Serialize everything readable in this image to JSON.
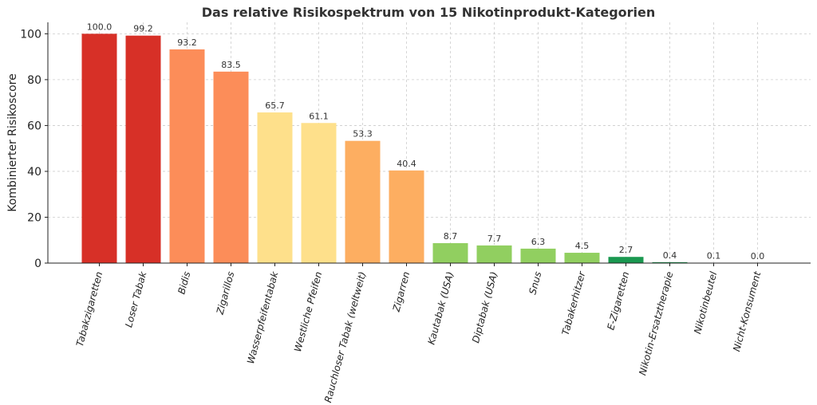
{
  "chart_data": {
    "type": "bar",
    "title": "Das relative Risikospektrum von 15 Nikotinprodukt-Kategorien",
    "xlabel": "",
    "ylabel": "Kombinierter Risikoscore",
    "ylim": [
      0,
      105
    ],
    "yticks": [
      0,
      20,
      40,
      60,
      80,
      100
    ],
    "grid": true,
    "categories": [
      "Tabakzigaretten",
      "Loser Tabak",
      "Bidis",
      "Zigarillos",
      "Wasserpfeifentabak",
      "Westliche Pfeifen",
      "Rauchloser Tabak (weltweit)",
      "Zigarren",
      "Kautabak (USA)",
      "Diptabak (USA)",
      "Snus",
      "Tabakerhitzer",
      "E-Zigaretten",
      "Nikotin-Ersatztherapie",
      "Nikotinbeutel",
      "Nicht-Konsument"
    ],
    "values": [
      100.0,
      99.2,
      93.2,
      83.5,
      65.7,
      61.1,
      53.3,
      40.4,
      8.7,
      7.7,
      6.3,
      4.5,
      2.7,
      0.4,
      0.1,
      0.0
    ],
    "value_labels": [
      "100.0",
      "99.2",
      "93.2",
      "83.5",
      "65.7",
      "61.1",
      "53.3",
      "40.4",
      "8.7",
      "7.7",
      "6.3",
      "4.5",
      "2.7",
      "0.4",
      "0.1",
      "0.0"
    ],
    "colors": [
      "#d73027",
      "#d73027",
      "#fc8d59",
      "#fc8d59",
      "#fee08b",
      "#fee08b",
      "#fdae61",
      "#fdae61",
      "#91cf60",
      "#91cf60",
      "#91cf60",
      "#91cf60",
      "#1a9850",
      "#1a9850",
      "#1a9850",
      "#1a9850"
    ]
  }
}
